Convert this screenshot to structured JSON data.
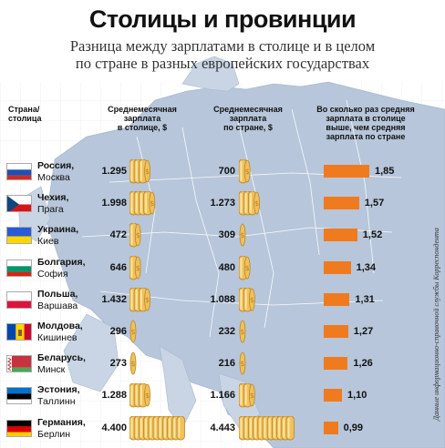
{
  "header": {
    "title": "Столицы и провинции",
    "subtitle_line1": "Разница между зарплатами в столице и в целом",
    "subtitle_line2": "по стране в разных европейских государствах"
  },
  "columns": {
    "country": [
      "Страна/",
      "столица"
    ],
    "capital_salary": [
      "Среднемесячная",
      "зарплата",
      "в столице, $"
    ],
    "country_salary": [
      "Среднемесячная",
      "зарплата",
      "по стране, $"
    ],
    "ratio": [
      "Во сколько раз средняя",
      "зарплата в столице",
      "выше, чем средняя",
      "зарплата по стране"
    ]
  },
  "rows": [
    {
      "country": "Россия,",
      "city": "Москва",
      "capital": "1.295",
      "national": "700",
      "ratio": "1,85",
      "flag": "russia"
    },
    {
      "country": "Чехия,",
      "city": "Прага",
      "capital": "1.998",
      "national": "1.273",
      "ratio": "1,57",
      "flag": "czech"
    },
    {
      "country": "Украина,",
      "city": "Киев",
      "capital": "472",
      "national": "309",
      "ratio": "1,52",
      "flag": "ukraine"
    },
    {
      "country": "Болгария,",
      "city": "София",
      "capital": "646",
      "national": "480",
      "ratio": "1,34",
      "flag": "bulgaria"
    },
    {
      "country": "Польша,",
      "city": "Варшава",
      "capital": "1.432",
      "national": "1.088",
      "ratio": "1,31",
      "flag": "poland"
    },
    {
      "country": "Молдова,",
      "city": "Кишинев",
      "capital": "296",
      "national": "232",
      "ratio": "1,27",
      "flag": "moldova"
    },
    {
      "country": "Беларусь,",
      "city": "Минск",
      "capital": "273",
      "national": "216",
      "ratio": "1,26",
      "flag": "belarus"
    },
    {
      "country": "Эстония,",
      "city": "Таллинн",
      "capital": "1.288",
      "national": "1.166",
      "ratio": "1,10",
      "flag": "estonia"
    },
    {
      "country": "Германия,",
      "city": "Берлин",
      "capital": "4.400",
      "national": "4.443",
      "ratio": "0,99",
      "flag": "germany"
    }
  ],
  "ratio_values": [
    1.85,
    1.57,
    1.52,
    1.34,
    1.31,
    1.27,
    1.26,
    1.1,
    0.99
  ],
  "capital_values": [
    1295,
    1998,
    472,
    646,
    1432,
    296,
    273,
    1288,
    4400
  ],
  "national_values": [
    700,
    1273,
    309,
    480,
    1088,
    232,
    216,
    1166,
    4443
  ],
  "source": "Данные информационно-справочной службы Корреспондента",
  "colors": {
    "bar": "#f07b1e",
    "coin": "#e8b64a",
    "map_land": "#b9c8dc",
    "map_sea": "#ffffff"
  }
}
